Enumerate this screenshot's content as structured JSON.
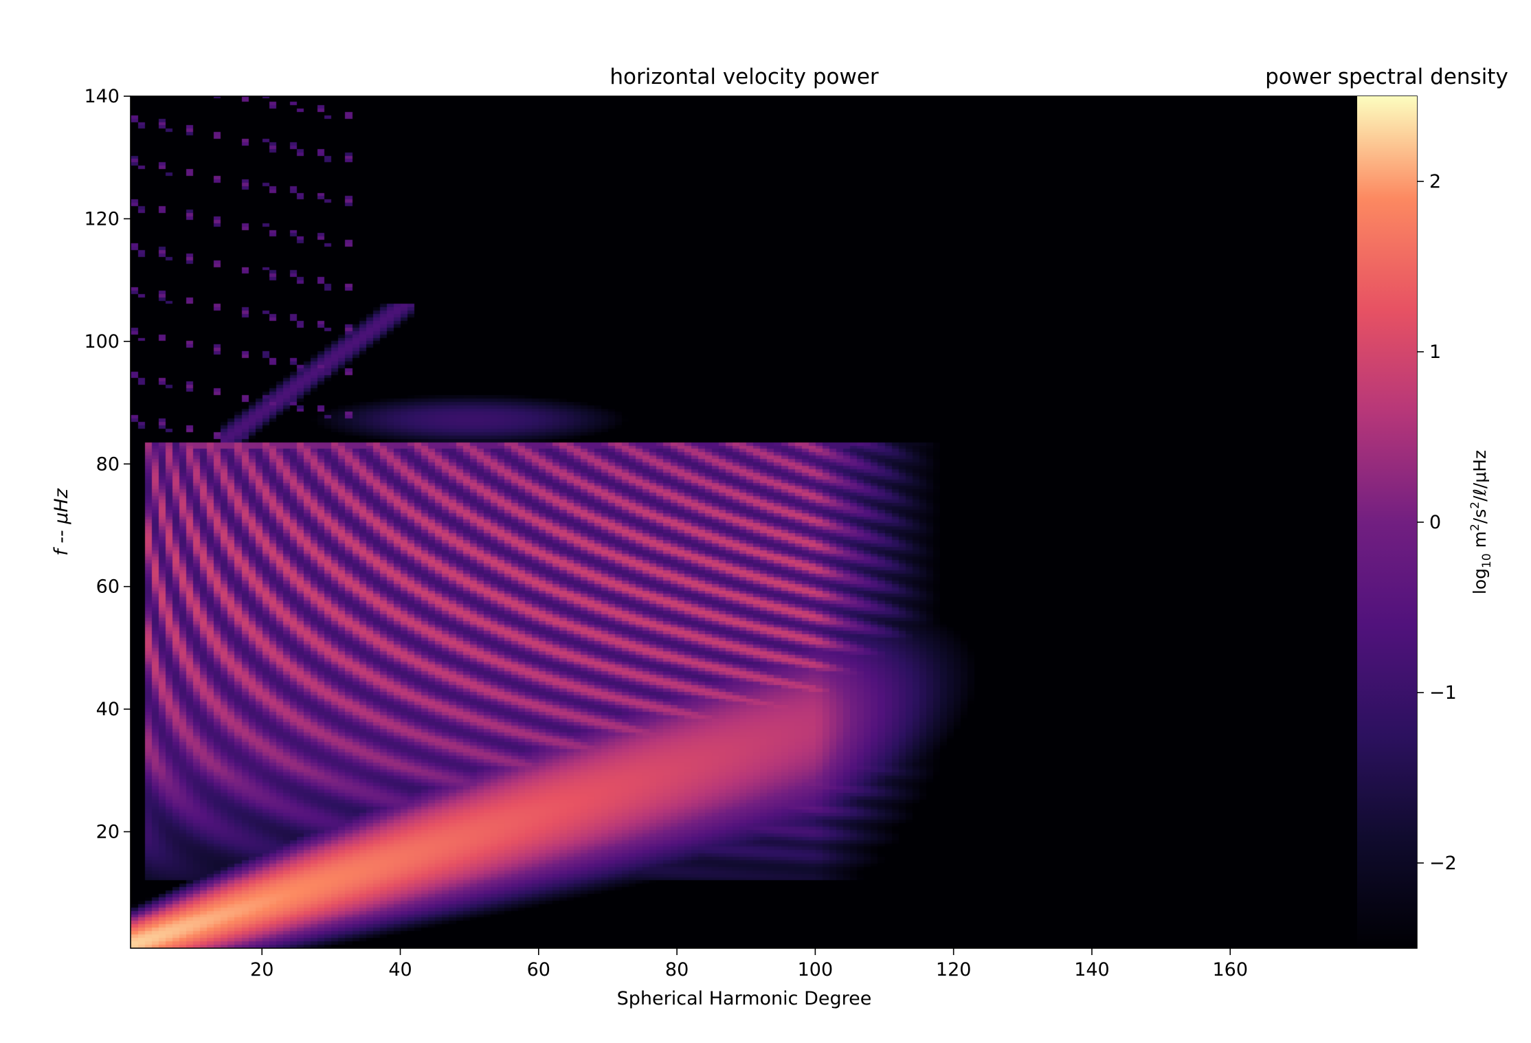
{
  "chart_data": {
    "type": "heatmap",
    "title": "horizontal velocity power",
    "xlabel": "Spherical Harmonic Degree",
    "ylabel": "f -- μHz",
    "xlim": [
      1,
      187
    ],
    "ylim": [
      1,
      140
    ],
    "xticks": [
      20,
      40,
      60,
      80,
      100,
      120,
      140,
      160
    ],
    "yticks": [
      20,
      40,
      60,
      80,
      100,
      120,
      140
    ],
    "colormap": "magma",
    "colorbar": {
      "title": "power spectral density",
      "label_main": "log",
      "label_sub": "10",
      "label_rest1": " m",
      "label_sup": "2",
      "label_rest2": "/s",
      "label_sup2": "2",
      "label_rest3": "/ℓ/μHz",
      "ticks": [
        2,
        1,
        0,
        -1,
        -2
      ],
      "tick_labels": [
        "2",
        "1",
        "0",
        "−1",
        "−2"
      ],
      "vmin": -2.5,
      "vmax": 2.5
    },
    "features": {
      "diagonal_ridge": {
        "from": [
          1,
          1
        ],
        "to": [
          80,
          30
        ],
        "peak_log_power": 2.3
      },
      "p_mode_band": {
        "l_range": [
          5,
          115
        ],
        "f_range": [
          15,
          82
        ],
        "peak_log_power": 1.0,
        "ridges": 18
      },
      "cutoff_frequency": 83,
      "upper_branch": {
        "l_range": [
          15,
          40
        ],
        "f_range": [
          84,
          105
        ],
        "log_power": -0.8
      },
      "upper_blob": {
        "center": [
          50,
          87
        ],
        "log_power": -1.0
      },
      "background_log_power": -2.5
    }
  }
}
